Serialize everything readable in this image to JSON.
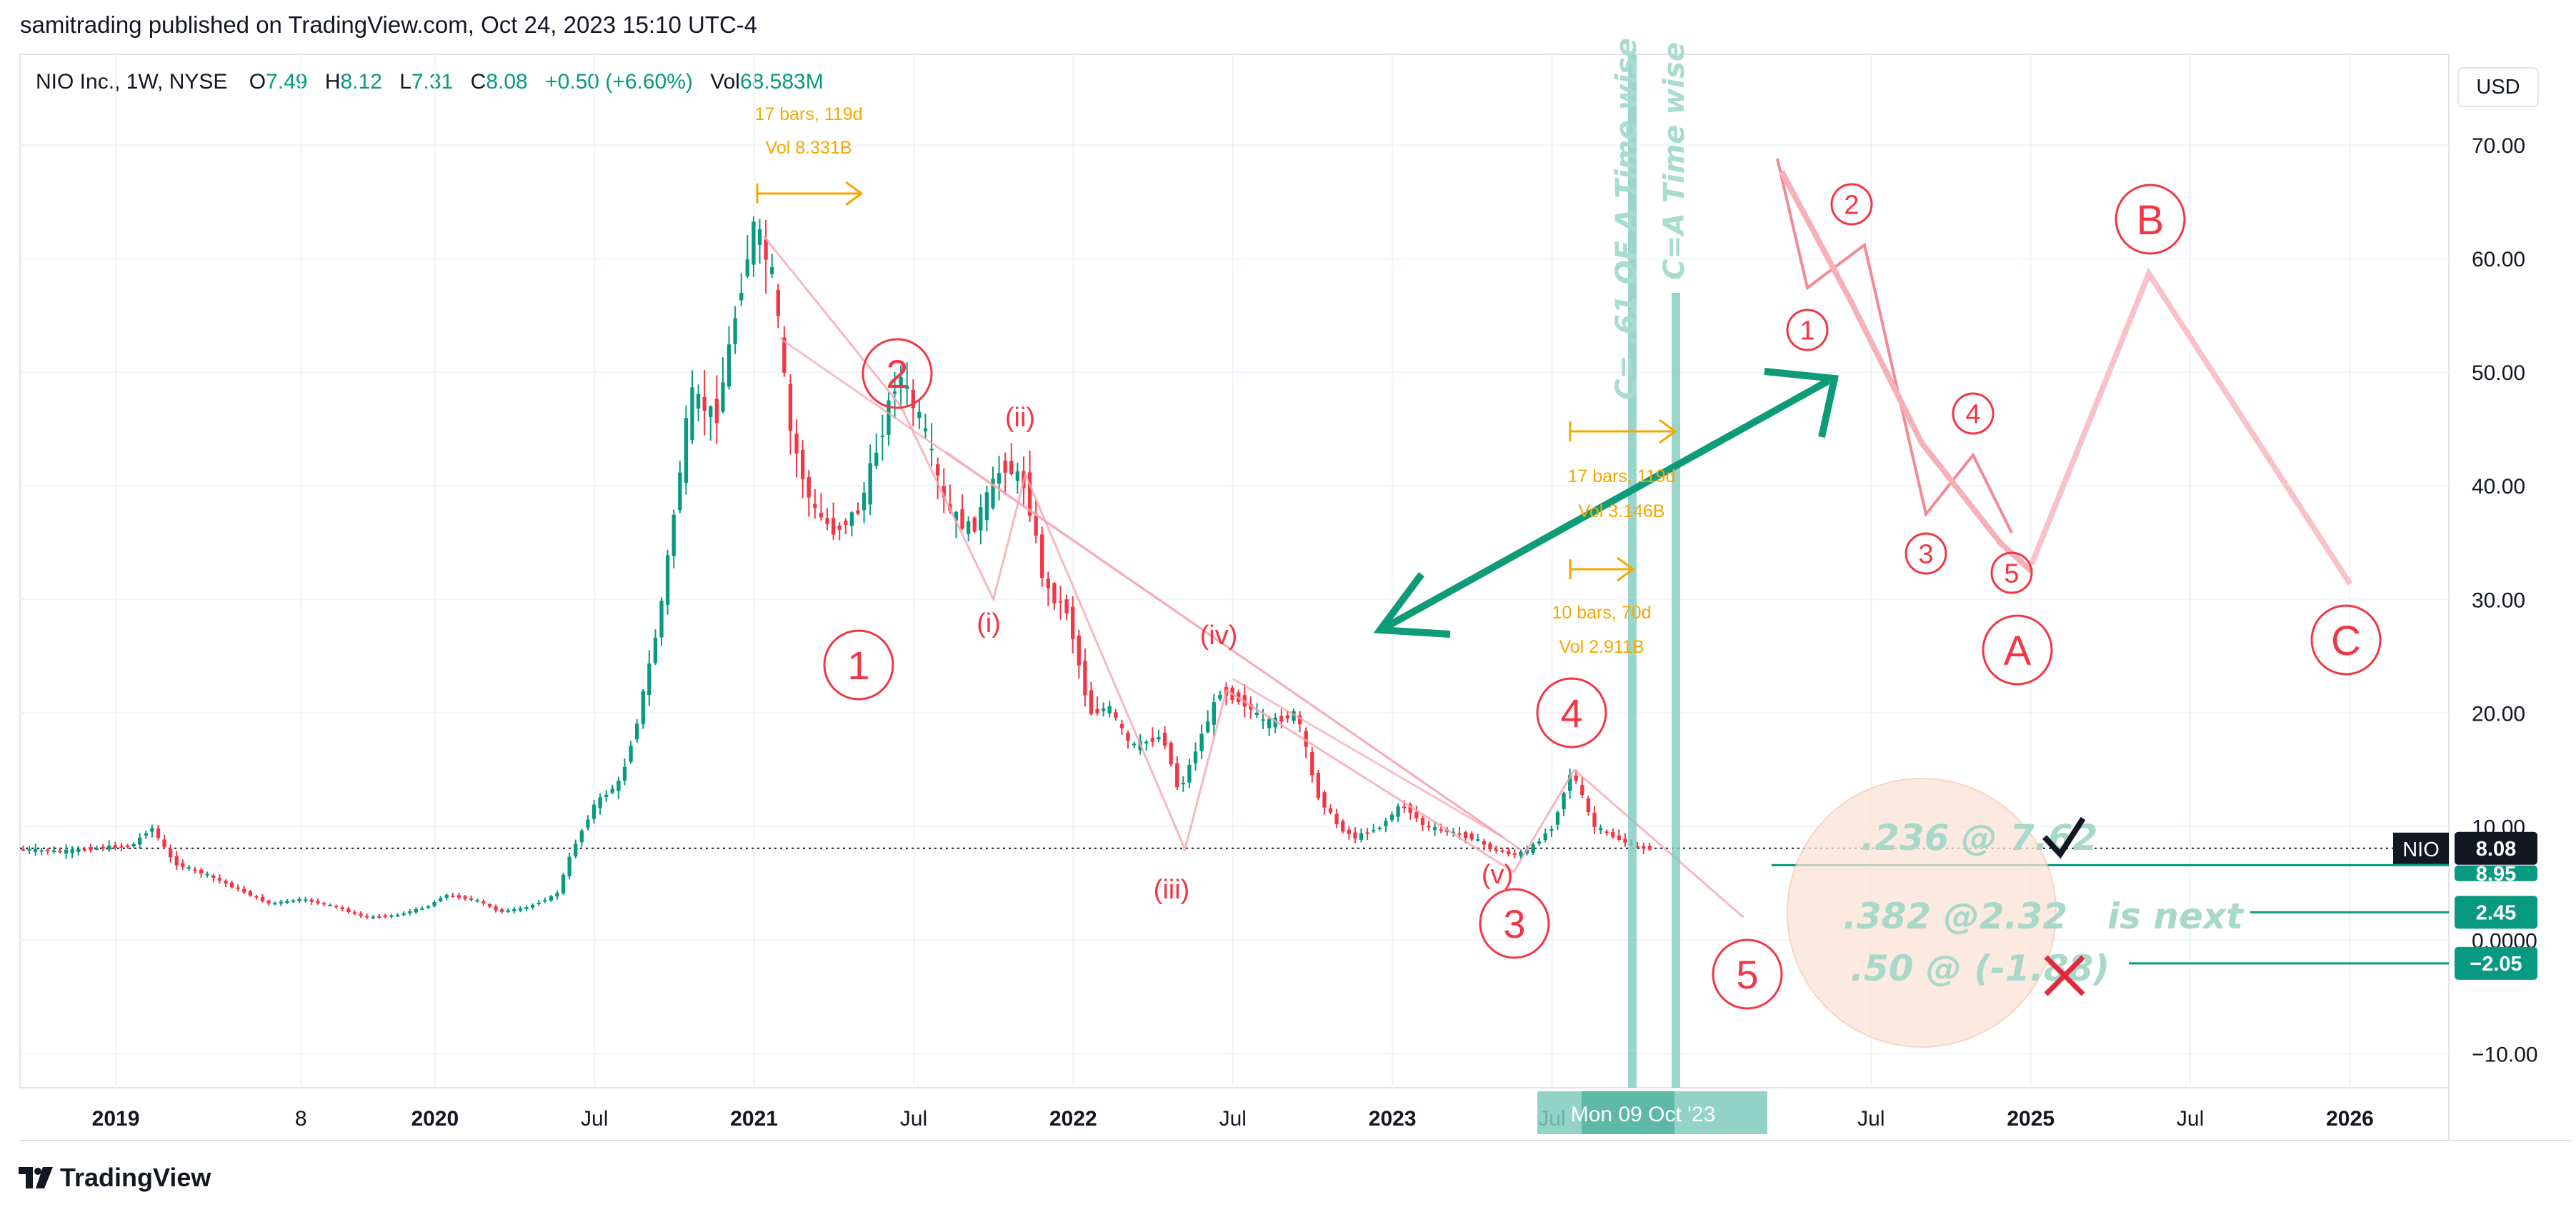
{
  "header": {
    "publisher": "samitrading published on TradingView.com, Oct 24, 2023 15:10 UTC-4"
  },
  "legend": {
    "symbol": "NIO Inc., 1W, NYSE",
    "open_label": "O",
    "open": "7.49",
    "high_label": "H",
    "high": "8.12",
    "low_label": "L",
    "low": "7.31",
    "close_label": "C",
    "close": "8.08",
    "change": "+0.50 (+6.60%)",
    "vol_label": "Vol",
    "vol": "68.583M"
  },
  "footer": {
    "brand": "TradingView"
  },
  "currency_button": "USD",
  "colors": {
    "up": "#089981",
    "down": "#f23645",
    "wave": "#f23645",
    "orange": "#f7a600",
    "teal_line": "#80cbbd",
    "green_arrow": "#0e9b78",
    "pink": "#f9b4bc"
  },
  "chart_data": {
    "type": "candlestick",
    "ylim": [
      -13,
      78
    ],
    "y_ticks": [
      70,
      60,
      50,
      40,
      30,
      20,
      10,
      0,
      -10
    ],
    "y_tick_labels": [
      "70.00",
      "60.00",
      "50.00",
      "40.00",
      "30.00",
      "20.00",
      "10.00",
      "0.0000",
      "−10.00"
    ],
    "x_ticks": [
      {
        "label": "2019",
        "t": 2019.0,
        "bold": true
      },
      {
        "label": "8",
        "t": 2019.58,
        "bold": false
      },
      {
        "label": "2020",
        "t": 2020.0,
        "bold": true
      },
      {
        "label": "Jul",
        "t": 2020.5,
        "bold": false
      },
      {
        "label": "2021",
        "t": 2021.0,
        "bold": true
      },
      {
        "label": "Jul",
        "t": 2021.5,
        "bold": false
      },
      {
        "label": "2022",
        "t": 2022.0,
        "bold": true
      },
      {
        "label": "Jul",
        "t": 2022.5,
        "bold": false
      },
      {
        "label": "2023",
        "t": 2023.0,
        "bold": true
      },
      {
        "label": "Jul",
        "t": 2023.5,
        "bold": false
      },
      {
        "label": "Jul",
        "t": 2024.5,
        "bold": false
      },
      {
        "label": "2025",
        "t": 2025.0,
        "bold": true
      },
      {
        "label": "Jul",
        "t": 2025.5,
        "bold": false
      },
      {
        "label": "2026",
        "t": 2026.0,
        "bold": true
      }
    ],
    "price_path": [
      [
        2018.71,
        8.0
      ],
      [
        2018.85,
        7.8
      ],
      [
        2019.0,
        8.2
      ],
      [
        2019.07,
        8.3
      ],
      [
        2019.13,
        10.0
      ],
      [
        2019.2,
        6.8
      ],
      [
        2019.3,
        5.8
      ],
      [
        2019.4,
        4.5
      ],
      [
        2019.5,
        3.2
      ],
      [
        2019.6,
        3.6
      ],
      [
        2019.7,
        3.0
      ],
      [
        2019.8,
        2.0
      ],
      [
        2019.9,
        2.2
      ],
      [
        2020.0,
        3.0
      ],
      [
        2020.05,
        4.0
      ],
      [
        2020.15,
        3.5
      ],
      [
        2020.22,
        2.5
      ],
      [
        2020.3,
        2.8
      ],
      [
        2020.4,
        4.0
      ],
      [
        2020.45,
        8.0
      ],
      [
        2020.52,
        12.0
      ],
      [
        2020.6,
        14.0
      ],
      [
        2020.65,
        19.0
      ],
      [
        2020.72,
        28.0
      ],
      [
        2020.78,
        40.0
      ],
      [
        2020.82,
        48.0
      ],
      [
        2020.9,
        46.0
      ],
      [
        2020.98,
        58.0
      ],
      [
        2021.02,
        63.0
      ],
      [
        2021.08,
        58.0
      ],
      [
        2021.13,
        45.0
      ],
      [
        2021.2,
        38.0
      ],
      [
        2021.27,
        36.0
      ],
      [
        2021.35,
        38.0
      ],
      [
        2021.42,
        45.0
      ],
      [
        2021.47,
        50.0
      ],
      [
        2021.55,
        45.0
      ],
      [
        2021.62,
        38.0
      ],
      [
        2021.7,
        36.0
      ],
      [
        2021.8,
        42.0
      ],
      [
        2021.87,
        40.0
      ],
      [
        2021.93,
        31.0
      ],
      [
        2022.0,
        29.0
      ],
      [
        2022.07,
        20.0
      ],
      [
        2022.13,
        20.5
      ],
      [
        2022.2,
        17.0
      ],
      [
        2022.3,
        18.0
      ],
      [
        2022.35,
        13.0
      ],
      [
        2022.42,
        18.0
      ],
      [
        2022.48,
        22.0
      ],
      [
        2022.55,
        21.0
      ],
      [
        2022.62,
        19.0
      ],
      [
        2022.72,
        20.0
      ],
      [
        2022.78,
        13.0
      ],
      [
        2022.85,
        10.0
      ],
      [
        2022.9,
        9.0
      ],
      [
        2022.98,
        10.0
      ],
      [
        2023.05,
        12.0
      ],
      [
        2023.12,
        10.0
      ],
      [
        2023.2,
        9.5
      ],
      [
        2023.27,
        9.0
      ],
      [
        2023.33,
        8.0
      ],
      [
        2023.4,
        7.5
      ],
      [
        2023.45,
        8.0
      ],
      [
        2023.52,
        10.0
      ],
      [
        2023.58,
        15.0
      ],
      [
        2023.65,
        10.0
      ],
      [
        2023.72,
        9.0
      ],
      [
        2023.78,
        8.2
      ],
      [
        2023.82,
        8.08
      ]
    ],
    "last_price": 8.08,
    "symbol_tag": "NIO",
    "price_tags": [
      {
        "value": "8.08",
        "price": 8.08,
        "style": "dark"
      },
      {
        "value": "8.95",
        "price": 6.6,
        "style": "teal-clip"
      },
      {
        "value": "2.45",
        "price": 2.45,
        "style": "teal"
      },
      {
        "value": "−2.05",
        "price": -2.05,
        "style": "teal"
      }
    ],
    "fib_annotations": [
      {
        "text": ".236 @ 7.62",
        "price": 8.0
      },
      {
        "text": ".382 @2.32",
        "price": 2.45
      },
      {
        "text": "is next",
        "price": 2.45
      },
      {
        "text": ".50 @ (-1.88)",
        "price": -2.05
      }
    ],
    "waves_main": [
      {
        "label": "1",
        "t": 2021.33,
        "price": 33.5
      },
      {
        "label": "2",
        "t": 2021.45,
        "price": 48.5
      },
      {
        "label": "3",
        "t": 2023.41,
        "price": 1.6
      },
      {
        "label": "4",
        "t": 2023.57,
        "price": 22.0
      },
      {
        "label": "5",
        "t": 2024.09,
        "price": -2.6
      }
    ],
    "waves_sub": [
      {
        "label": "(i)",
        "t": 2021.76,
        "price": 31.0
      },
      {
        "label": "(ii)",
        "t": 2021.85,
        "price": 47.0
      },
      {
        "label": "(iii)",
        "t": 2022.33,
        "price": 2.8
      },
      {
        "label": "(iv)",
        "t": 2022.48,
        "price": 29.5
      },
      {
        "label": "(v)",
        "t": 2023.34,
        "price": 6.1
      }
    ],
    "waves_projection": [
      {
        "label": "1",
        "t": 2024.43,
        "price": 52.4
      },
      {
        "label": "2",
        "t": 2024.49,
        "price": 67.3
      },
      {
        "label": "3",
        "t": 2024.7,
        "price": 34.0
      },
      {
        "label": "4",
        "t": 2024.84,
        "price": 43.2
      },
      {
        "label": "5",
        "t": 2024.94,
        "price": 32.0
      }
    ],
    "waves_abc": [
      {
        "label": "A",
        "t": 2024.95,
        "price": 25.7
      },
      {
        "label": "B",
        "t": 2025.38,
        "price": 68.8
      },
      {
        "label": "C",
        "t": 2026.0,
        "price": 25.7
      }
    ],
    "time_labels": [
      "C= .61 OF A Time wise",
      "C=A Time wise"
    ],
    "range_boxes": [
      {
        "line1": "17 bars, 119d",
        "line2": "Vol 8.331B"
      },
      {
        "line1": "17 bars, 119d",
        "line2": "Vol 3.146B"
      },
      {
        "line1": "10 bars, 70d",
        "line2": "Vol 2.911B"
      }
    ],
    "crosshair_label": "Mon 09 Oct '23"
  }
}
